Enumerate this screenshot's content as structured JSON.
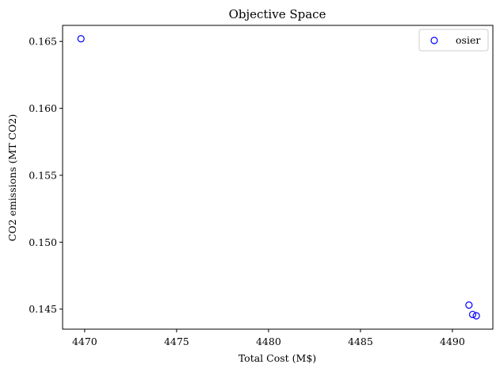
{
  "chart_data": {
    "type": "scatter",
    "title": "Objective Space",
    "xlabel": "Total Cost (M$)",
    "ylabel": "CO2 emissions (MT CO2)",
    "xlim": [
      4468.8,
      4492.2
    ],
    "ylim": [
      0.1435,
      0.1662
    ],
    "xticks": [
      4470,
      4475,
      4480,
      4485,
      4490
    ],
    "yticks": [
      0.145,
      0.15,
      0.155,
      0.16,
      0.165
    ],
    "xtick_labels": [
      "4470",
      "4475",
      "4480",
      "4485",
      "4490"
    ],
    "ytick_labels": [
      "0.145",
      "0.150",
      "0.155",
      "0.160",
      "0.165"
    ],
    "grid": false,
    "legend_position": "upper right",
    "series": [
      {
        "name": "osier",
        "marker": "open-circle",
        "color": "#0000ff",
        "points": [
          {
            "x": 4469.8,
            "y": 0.1652
          },
          {
            "x": 4490.9,
            "y": 0.1453
          },
          {
            "x": 4491.1,
            "y": 0.1446
          },
          {
            "x": 4491.3,
            "y": 0.1445
          }
        ]
      }
    ]
  }
}
